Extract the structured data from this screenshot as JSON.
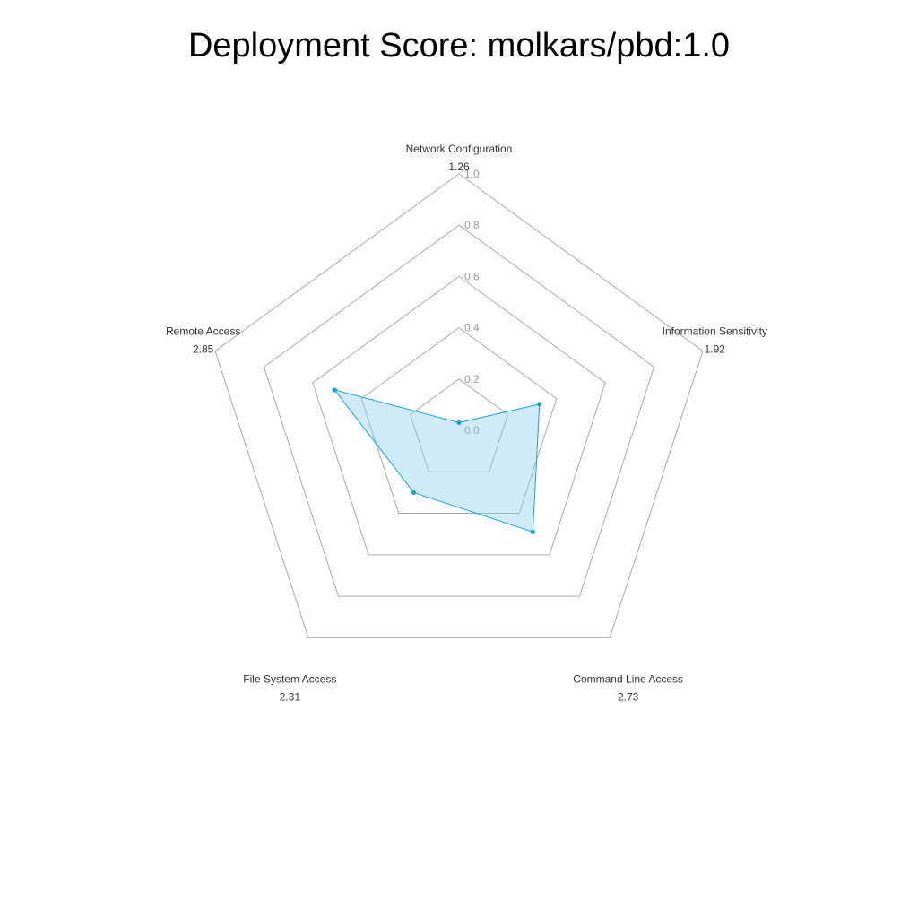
{
  "chart_data": {
    "type": "radar",
    "title": "Deployment Score: molkars/pbd:1.0",
    "axes": [
      {
        "label": "Network Configuration",
        "score": "1.26",
        "value": 0.03
      },
      {
        "label": "Information Sensitivity",
        "score": "1.92",
        "value": 0.33
      },
      {
        "label": "Command Line Access",
        "score": "2.73",
        "value": 0.49
      },
      {
        "label": "File System Access",
        "score": "2.31",
        "value": 0.3
      },
      {
        "label": "Remote Access",
        "score": "2.85",
        "value": 0.51
      }
    ],
    "rlim": [
      0,
      1
    ],
    "ticks": [
      "0.0",
      "0.2",
      "0.4",
      "0.6",
      "0.8",
      "1.0"
    ],
    "grid": true,
    "colors": {
      "fill": "#87ceeb",
      "line": "#1aa3d9",
      "grid": "#aaaaaa",
      "ticks": "#999999"
    }
  }
}
